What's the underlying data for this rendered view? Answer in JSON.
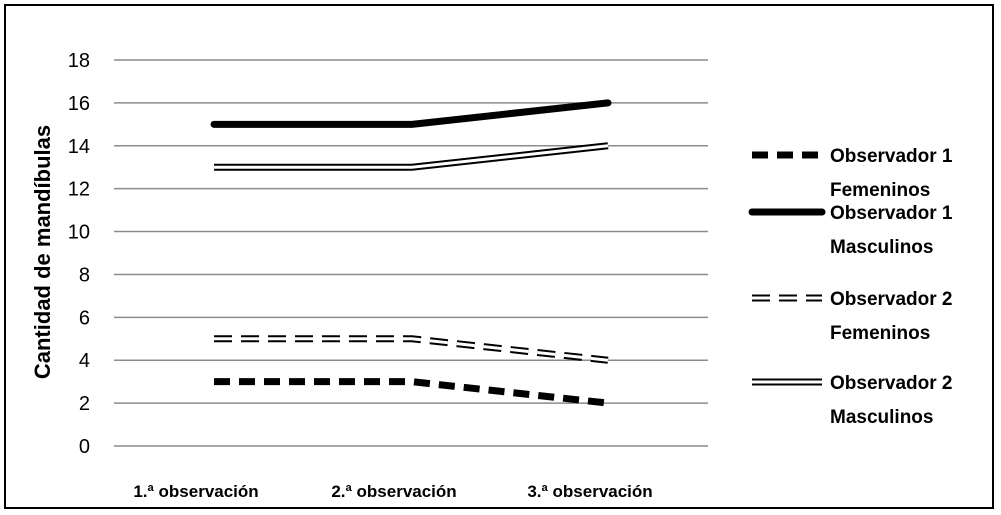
{
  "chart_data": {
    "type": "line",
    "title": "",
    "xlabel": "",
    "ylabel": "Cantidad de mandíbulas",
    "categories": [
      "1.ª observación",
      "2.ª observación",
      "3.ª observación"
    ],
    "ylim": [
      0,
      18
    ],
    "yticks": [
      0,
      2,
      4,
      6,
      8,
      10,
      12,
      14,
      16,
      18
    ],
    "grid": true,
    "legend_position": "right",
    "series": [
      {
        "name": "Observador 1 Femeninos",
        "legend_lines": [
          "Observador 1",
          "Femeninos"
        ],
        "style": "thick-dashed",
        "color": "#000000",
        "values": [
          3,
          3,
          2
        ]
      },
      {
        "name": "Observador 1 Masculinos",
        "legend_lines": [
          "Observador 1",
          "Masculinos"
        ],
        "style": "thick-solid",
        "color": "#000000",
        "values": [
          15,
          15,
          16
        ]
      },
      {
        "name": "Observador 2 Femeninos",
        "legend_lines": [
          "Observador 2",
          "Femeninos"
        ],
        "style": "double-dashed",
        "color": "#000000",
        "values": [
          5,
          5,
          4
        ]
      },
      {
        "name": "Observador 2 Masculinos",
        "legend_lines": [
          "Observador 2",
          "Masculinos"
        ],
        "style": "double-solid",
        "color": "#000000",
        "values": [
          13,
          13,
          14
        ]
      }
    ]
  }
}
